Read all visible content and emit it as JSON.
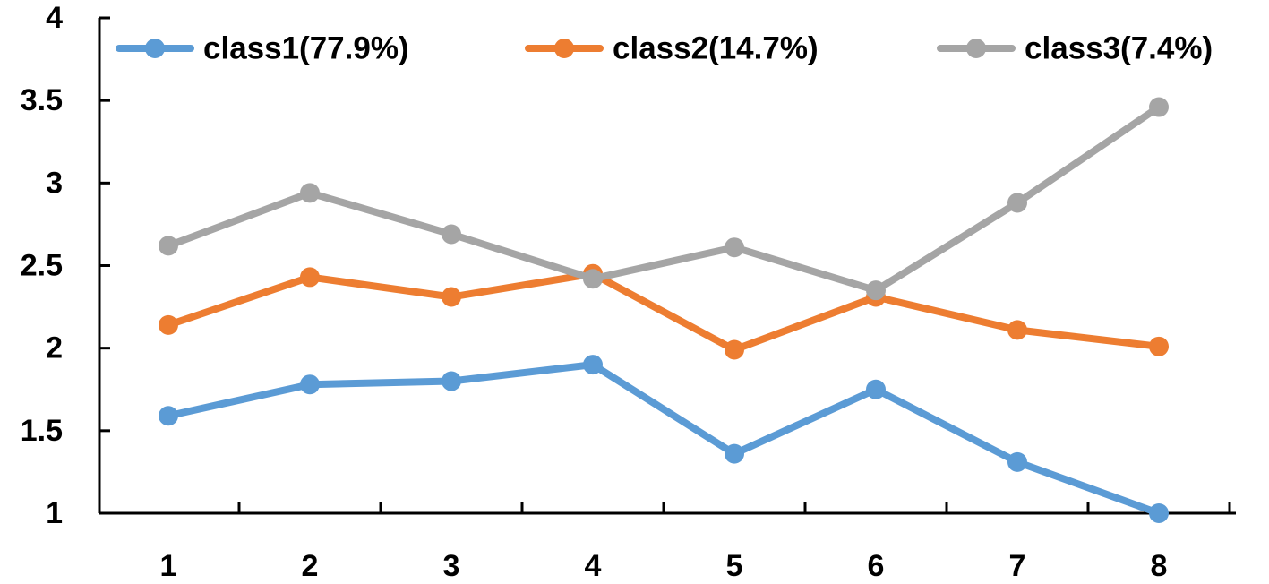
{
  "chart_data": {
    "type": "line",
    "title": "",
    "xlabel": "",
    "ylabel": "",
    "x": [
      1,
      2,
      3,
      4,
      5,
      6,
      7,
      8
    ],
    "xtick_labels": [
      "1",
      "2",
      "3",
      "4",
      "5",
      "6",
      "7",
      "8"
    ],
    "ylim": [
      1,
      4
    ],
    "ytick_labels": [
      "1",
      "1.5",
      "2",
      "2.5",
      "3",
      "3.5",
      "4"
    ],
    "yticks": [
      1,
      1.5,
      2,
      2.5,
      3,
      3.5,
      4
    ],
    "grid": false,
    "legend_position": "top",
    "series": [
      {
        "name": "class1(77.9%)",
        "color": "#5b9bd5",
        "values": [
          1.59,
          1.78,
          1.8,
          1.9,
          1.36,
          1.75,
          1.31,
          1.0
        ]
      },
      {
        "name": "class2(14.7%)",
        "color": "#ed7d31",
        "values": [
          2.14,
          2.43,
          2.31,
          2.45,
          1.99,
          2.31,
          2.11,
          2.01
        ]
      },
      {
        "name": "class3(7.4%)",
        "color": "#a5a5a5",
        "values": [
          2.62,
          2.94,
          2.69,
          2.42,
          2.61,
          2.35,
          2.88,
          3.46
        ]
      }
    ]
  }
}
